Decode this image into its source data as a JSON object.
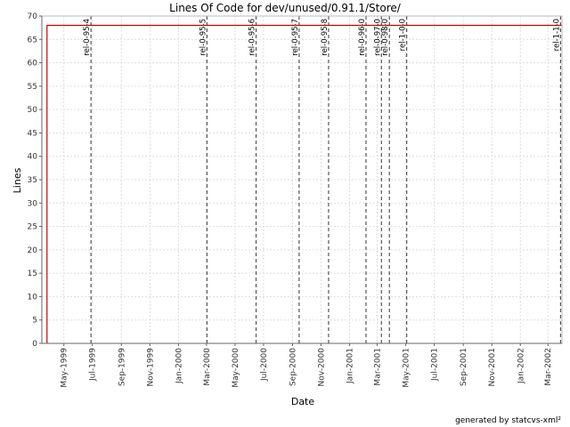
{
  "chart_data": {
    "type": "line",
    "title": "Lines Of Code for dev/unused/0.91.1/Store/",
    "xlabel": "Date",
    "ylabel": "Lines",
    "ylim": [
      0,
      70
    ],
    "y_ticks": [
      0,
      5,
      10,
      15,
      20,
      25,
      30,
      35,
      40,
      45,
      50,
      55,
      60,
      65,
      70
    ],
    "xlim": [
      "1999-03-15",
      "2002-03-31"
    ],
    "x_ticks": [
      {
        "date": "1999-05-01",
        "label": "May-1999"
      },
      {
        "date": "1999-07-01",
        "label": "Jul-1999"
      },
      {
        "date": "1999-09-01",
        "label": "Sep-1999"
      },
      {
        "date": "1999-11-01",
        "label": "Nov-1999"
      },
      {
        "date": "2000-01-01",
        "label": "Jan-2000"
      },
      {
        "date": "2000-03-01",
        "label": "Mar-2000"
      },
      {
        "date": "2000-05-01",
        "label": "May-2000"
      },
      {
        "date": "2000-07-01",
        "label": "Jul-2000"
      },
      {
        "date": "2000-09-01",
        "label": "Sep-2000"
      },
      {
        "date": "2000-11-01",
        "label": "Nov-2000"
      },
      {
        "date": "2001-01-01",
        "label": "Jan-2001"
      },
      {
        "date": "2001-03-01",
        "label": "Mar-2001"
      },
      {
        "date": "2001-05-01",
        "label": "May-2001"
      },
      {
        "date": "2001-07-01",
        "label": "Jul-2001"
      },
      {
        "date": "2001-09-01",
        "label": "Sep-2001"
      },
      {
        "date": "2001-11-01",
        "label": "Nov-2001"
      },
      {
        "date": "2002-01-01",
        "label": "Jan-2002"
      },
      {
        "date": "2002-03-01",
        "label": "Mar-2002"
      }
    ],
    "grid": true,
    "series": [
      {
        "color": "#cc0000",
        "points": [
          {
            "x": "1999-03-26",
            "y": 0
          },
          {
            "x": "1999-03-26",
            "y": 68
          },
          {
            "x": "2002-03-31",
            "y": 68
          }
        ]
      }
    ],
    "markers": [
      {
        "x": "1999-06-28",
        "label": "rel-0-95-4"
      },
      {
        "x": "2000-03-02",
        "label": "rel-0-95-5"
      },
      {
        "x": "2000-06-15",
        "label": "rel-0-95-6"
      },
      {
        "x": "2000-09-15",
        "label": "rel-0-95-7"
      },
      {
        "x": "2000-11-17",
        "label": "rel-0-95-8"
      },
      {
        "x": "2001-02-05",
        "label": "rel-0-96-0"
      },
      {
        "x": "2001-03-10",
        "label": "rel-0-97-0"
      },
      {
        "x": "2001-03-27",
        "label": "rel-0-98-0"
      },
      {
        "x": "2001-05-03",
        "label": "rel-1-0-0"
      },
      {
        "x": "2002-03-28",
        "label": "rel-1-1-0"
      }
    ],
    "colors": {
      "series": "#cc0000",
      "grid": "#dddddd",
      "marker": "#555555"
    }
  },
  "footer": "generated by statcvs-xml²"
}
